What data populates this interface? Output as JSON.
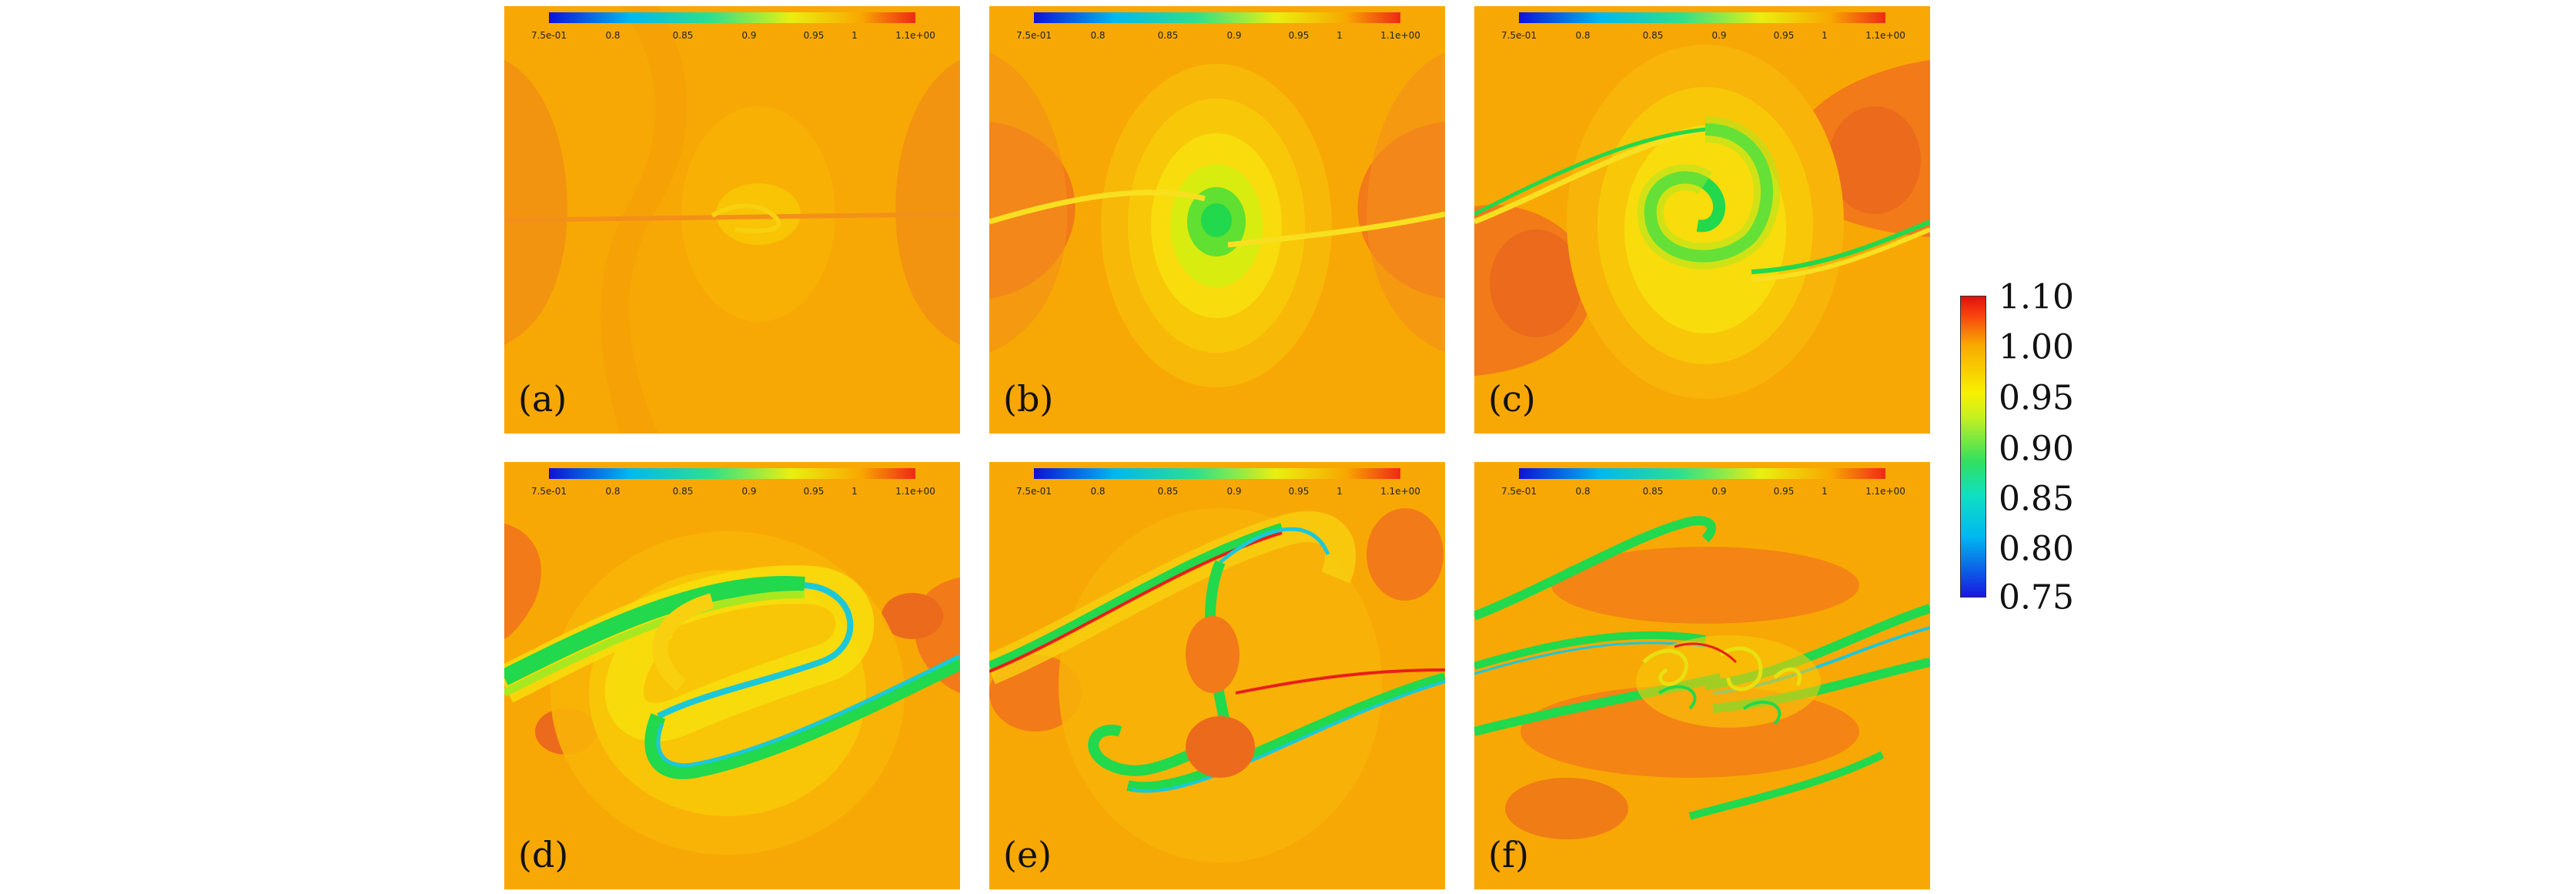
{
  "figure": {
    "panels": [
      {
        "label": "(a)"
      },
      {
        "label": "(b)"
      },
      {
        "label": "(c)"
      },
      {
        "label": "(d)"
      },
      {
        "label": "(e)"
      },
      {
        "label": "(f)"
      }
    ],
    "panel_colorbar_ticks": [
      "7.5e-01",
      "0.8",
      "0.85",
      "0.9",
      "0.95",
      "1",
      "1.1e+00"
    ],
    "colorbar_ticks": [
      "1.10",
      "1.00",
      "0.95",
      "0.90",
      "0.85",
      "0.80",
      "0.75"
    ],
    "colors": {
      "background_orange": "#F8A804",
      "deep_orange": "#F27A18",
      "yellow": "#F8E40C",
      "green": "#22D84C",
      "cyan": "#1CC8D8",
      "blue": "#1424D0",
      "red": "#E82018"
    }
  }
}
